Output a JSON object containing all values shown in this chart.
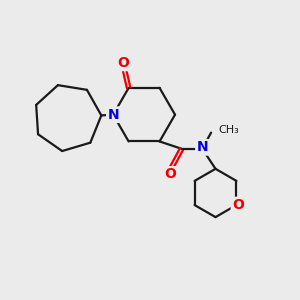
{
  "background_color": "#ebebeb",
  "bond_color": "#1a1a1a",
  "N_color": "#0000ee",
  "O_color": "#ee0000",
  "line_width": 1.6,
  "figsize": [
    3.0,
    3.0
  ],
  "dpi": 100,
  "xlim": [
    0,
    10
  ],
  "ylim": [
    0,
    10
  ]
}
